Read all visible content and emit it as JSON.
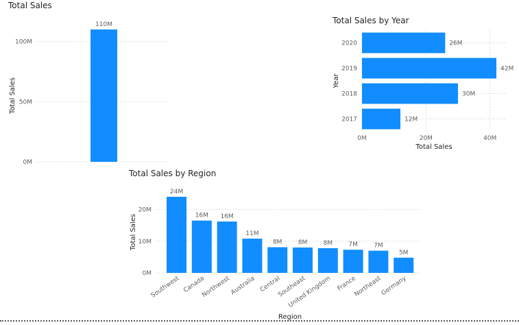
{
  "colors": {
    "bar": "#118dff"
  },
  "chart_data": [
    {
      "type": "bar",
      "title": "Total Sales",
      "xlabel": "",
      "ylabel": "Total Sales",
      "categories": [
        ""
      ],
      "values": [
        110
      ],
      "data_labels": [
        "110M"
      ],
      "y_ticks": [
        {
          "v": 0,
          "label": "0M"
        },
        {
          "v": 50,
          "label": "50M"
        },
        {
          "v": 100,
          "label": "100M"
        }
      ],
      "ylim": [
        0,
        110
      ],
      "grid": true
    },
    {
      "type": "bar",
      "orientation": "horizontal",
      "title": "Total Sales by Year",
      "xlabel": "Total Sales",
      "ylabel": "Year",
      "categories": [
        "2020",
        "2019",
        "2018",
        "2017"
      ],
      "values": [
        26,
        42,
        30,
        12
      ],
      "data_labels": [
        "26M",
        "42M",
        "30M",
        "12M"
      ],
      "x_ticks": [
        {
          "v": 0,
          "label": "0M"
        },
        {
          "v": 20,
          "label": "20M"
        },
        {
          "v": 40,
          "label": "40M"
        }
      ],
      "xlim": [
        0,
        45
      ],
      "grid": true
    },
    {
      "type": "bar",
      "title": "Total Sales by Region",
      "xlabel": "Region",
      "ylabel": "Total Sales",
      "categories": [
        "Southwest",
        "Canada",
        "Northwest",
        "Australia",
        "Central",
        "Southeast",
        "United Kingdom",
        "France",
        "Northeast",
        "Germany"
      ],
      "values": [
        24,
        16.5,
        16.2,
        10.8,
        8.1,
        8.0,
        7.8,
        7.3,
        7.0,
        4.8
      ],
      "data_labels": [
        "24M",
        "16M",
        "16M",
        "11M",
        "8M",
        "8M",
        "8M",
        "7M",
        "7M",
        "5M"
      ],
      "y_ticks": [
        {
          "v": 0,
          "label": "0M"
        },
        {
          "v": 10,
          "label": "10M"
        },
        {
          "v": 20,
          "label": "20M"
        }
      ],
      "ylim": [
        0,
        24
      ],
      "grid": true
    }
  ]
}
